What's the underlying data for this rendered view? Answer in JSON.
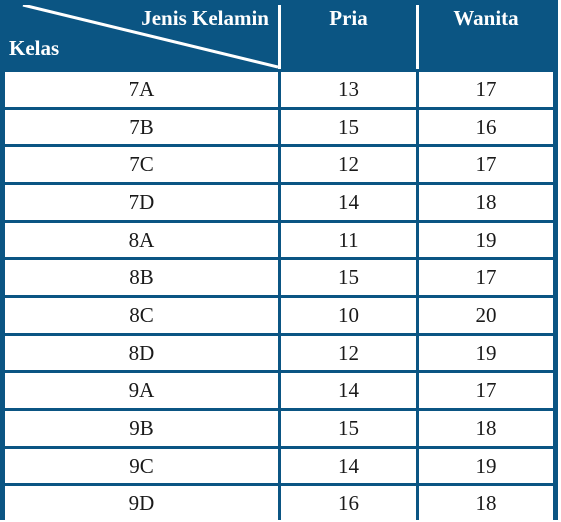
{
  "table": {
    "header": {
      "corner_top": "Jenis Kelamin",
      "corner_bottom": "Kelas",
      "col_pria": "Pria",
      "col_wanita": "Wanita"
    },
    "rows": [
      {
        "kelas": "7A",
        "pria": "13",
        "wanita": "17"
      },
      {
        "kelas": "7B",
        "pria": "15",
        "wanita": "16"
      },
      {
        "kelas": "7C",
        "pria": "12",
        "wanita": "17"
      },
      {
        "kelas": "7D",
        "pria": "14",
        "wanita": "18"
      },
      {
        "kelas": "8A",
        "pria": "11",
        "wanita": "19"
      },
      {
        "kelas": "8B",
        "pria": "15",
        "wanita": "17"
      },
      {
        "kelas": "8C",
        "pria": "10",
        "wanita": "20"
      },
      {
        "kelas": "8D",
        "pria": "12",
        "wanita": "19"
      },
      {
        "kelas": "9A",
        "pria": "14",
        "wanita": "17"
      },
      {
        "kelas": "9B",
        "pria": "15",
        "wanita": "18"
      },
      {
        "kelas": "9C",
        "pria": "14",
        "wanita": "19"
      },
      {
        "kelas": "9D",
        "pria": "16",
        "wanita": "18"
      }
    ]
  },
  "colors": {
    "header_bg": "#0b5583",
    "grid": "#0b5583",
    "cell_bg": "#ffffff",
    "header_text": "#ffffff",
    "cell_text": "#1a1a1a"
  }
}
